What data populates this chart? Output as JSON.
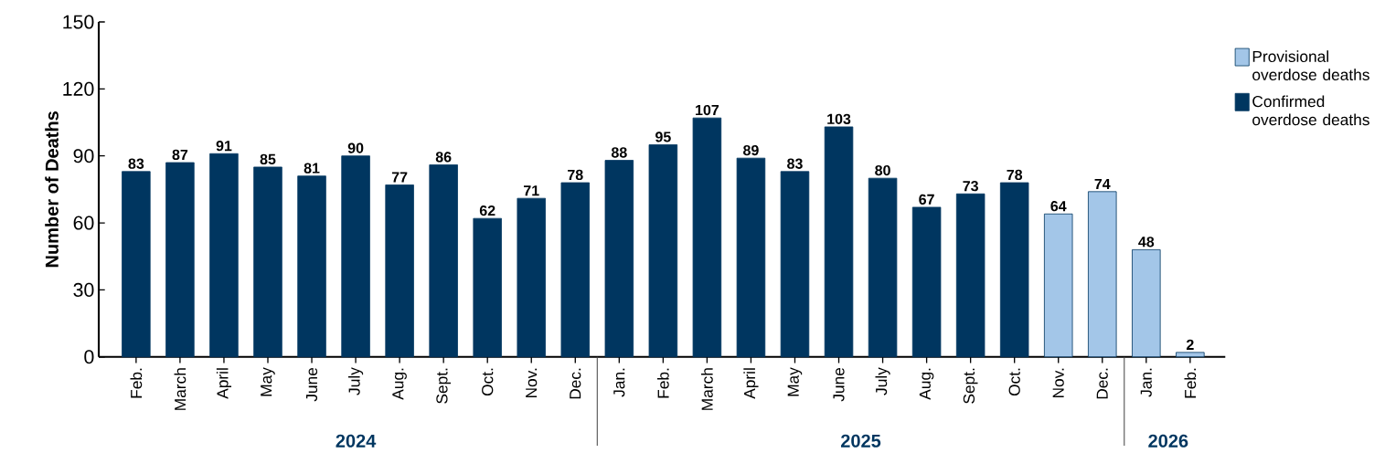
{
  "chart_data": {
    "type": "bar",
    "ylabel": "Number of Deaths",
    "categories": [
      "Feb.",
      "March",
      "April",
      "May",
      "June",
      "July",
      "Aug.",
      "Sept.",
      "Oct.",
      "Nov.",
      "Dec.",
      "Jan.",
      "Feb.",
      "March",
      "April",
      "May",
      "June",
      "July",
      "Aug.",
      "Sept.",
      "Oct.",
      "Nov.",
      "Dec.",
      "Jan.",
      "Feb."
    ],
    "series": [
      {
        "name": "Provisional overdose deaths",
        "color": "#a3c6e8",
        "values": [
          null,
          null,
          null,
          null,
          null,
          null,
          null,
          null,
          null,
          null,
          null,
          null,
          null,
          null,
          null,
          null,
          null,
          null,
          null,
          null,
          null,
          64,
          74,
          48,
          2
        ]
      },
      {
        "name": "Confirmed overdose deaths",
        "color": "#003660",
        "values": [
          83,
          87,
          91,
          85,
          81,
          90,
          77,
          86,
          62,
          71,
          78,
          88,
          95,
          107,
          89,
          83,
          103,
          80,
          67,
          73,
          78,
          null,
          null,
          null,
          null
        ]
      }
    ],
    "ylim": [
      0,
      150
    ],
    "yticks": [
      0,
      30,
      60,
      90,
      120,
      150
    ],
    "data_labels": true,
    "legend": "right",
    "annotations": [
      "2024",
      "2025",
      "2026"
    ]
  }
}
